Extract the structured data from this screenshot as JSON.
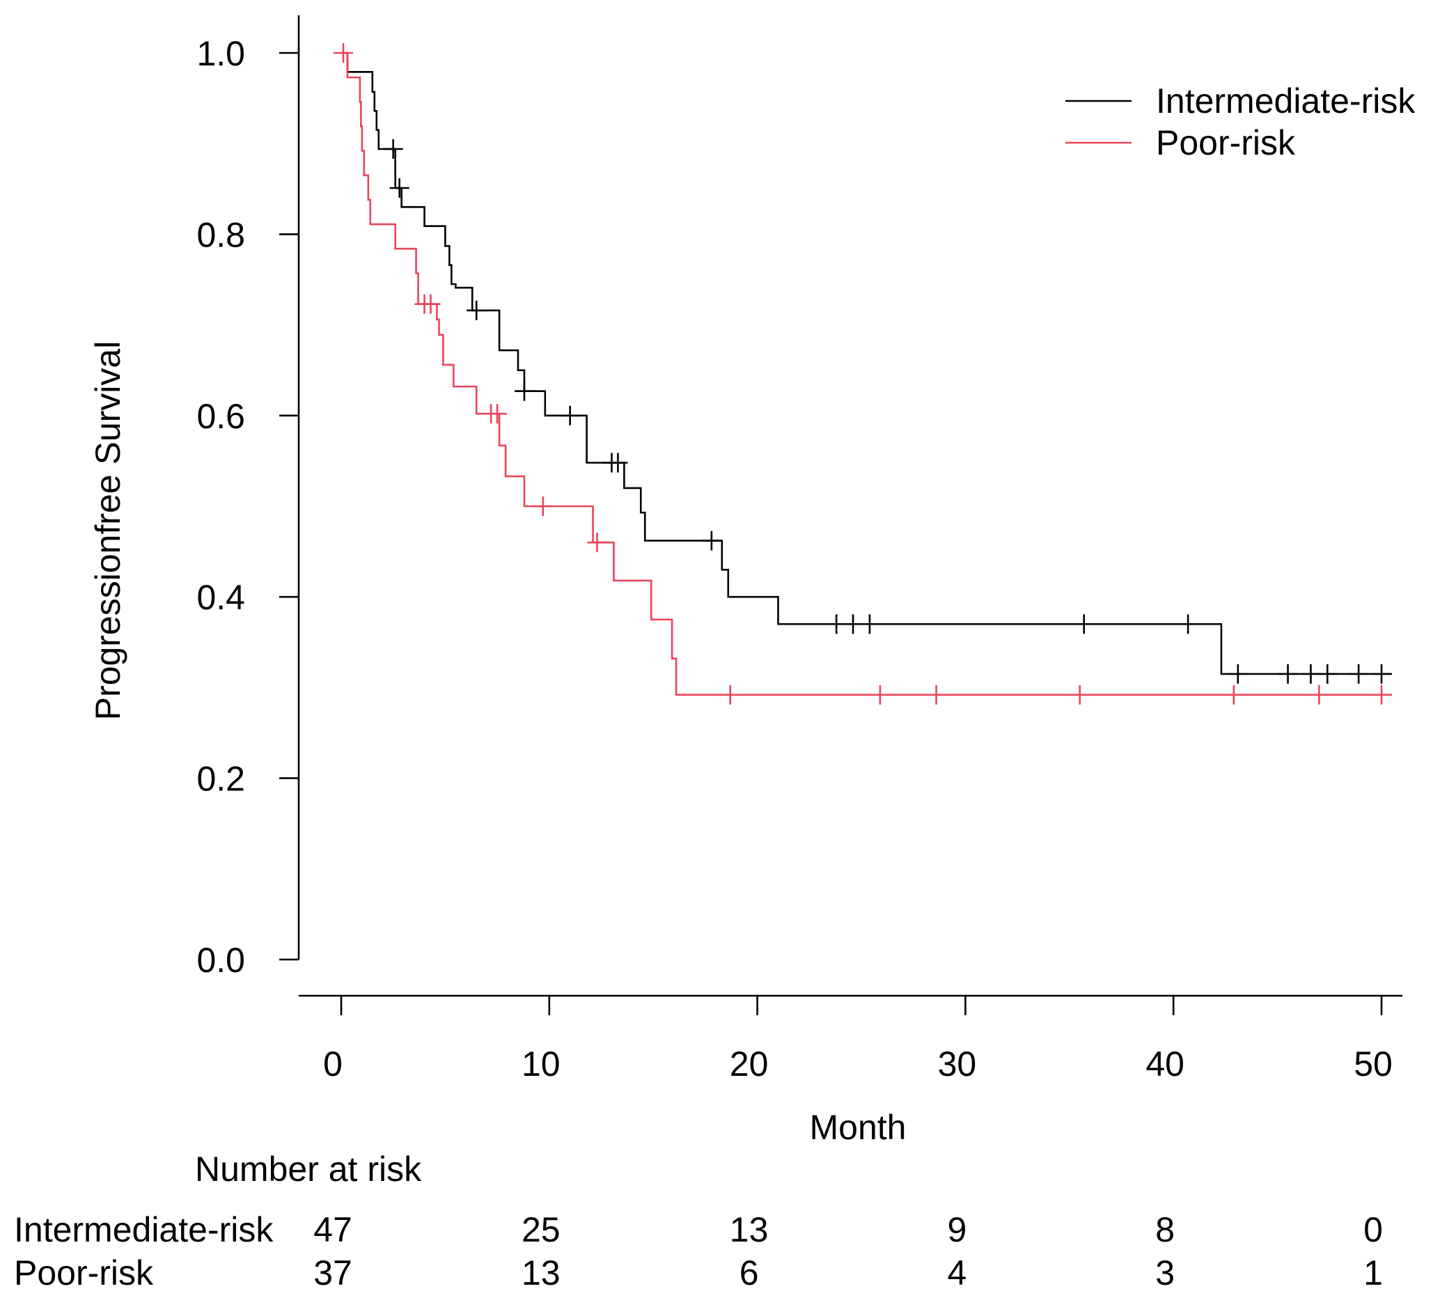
{
  "chart_data": {
    "type": "line",
    "subtype": "kaplan-meier step",
    "title": "",
    "xlabel": "Month",
    "ylabel": "Progressionfree Survival",
    "xlim": [
      0,
      50
    ],
    "ylim": [
      0,
      1
    ],
    "x_ticks": [
      "0",
      "10",
      "20",
      "30",
      "40",
      "50"
    ],
    "y_ticks": [
      "0.0",
      "0.2",
      "0.4",
      "0.6",
      "0.8",
      "1.0"
    ],
    "legend_position": "top-right",
    "series": [
      {
        "name": "Intermediate-risk",
        "color": "#000000",
        "steps": [
          [
            0,
            1.0
          ],
          [
            0.3,
            0.979
          ],
          [
            1.5,
            0.957
          ],
          [
            1.6,
            0.936
          ],
          [
            1.7,
            0.915
          ],
          [
            1.8,
            0.894
          ],
          [
            2.6,
            0.851
          ],
          [
            2.9,
            0.83
          ],
          [
            4.0,
            0.809
          ],
          [
            5.0,
            0.787
          ],
          [
            5.2,
            0.766
          ],
          [
            5.3,
            0.745
          ],
          [
            5.5,
            0.741
          ],
          [
            6.3,
            0.716
          ],
          [
            7.6,
            0.672
          ],
          [
            8.5,
            0.65
          ],
          [
            8.8,
            0.627
          ],
          [
            9.8,
            0.6
          ],
          [
            11.8,
            0.548
          ],
          [
            13.6,
            0.52
          ],
          [
            14.4,
            0.493
          ],
          [
            14.6,
            0.462
          ],
          [
            18.3,
            0.43
          ],
          [
            18.6,
            0.4
          ],
          [
            21.0,
            0.37
          ],
          [
            42.3,
            0.315
          ],
          [
            50.5,
            0.315
          ]
        ],
        "censor_times": [
          2.5,
          2.8,
          6.5,
          8.8,
          11.0,
          13.0,
          13.3,
          17.8,
          23.8,
          24.6,
          25.4,
          35.7,
          40.7,
          43.1,
          45.5,
          46.6,
          47.4,
          48.9,
          50.0
        ]
      },
      {
        "name": "Poor-risk",
        "color": "#e8455a",
        "steps": [
          [
            0,
            1.0
          ],
          [
            0.3,
            0.973
          ],
          [
            0.9,
            0.946
          ],
          [
            0.95,
            0.919
          ],
          [
            1.0,
            0.892
          ],
          [
            1.1,
            0.865
          ],
          [
            1.3,
            0.838
          ],
          [
            1.4,
            0.811
          ],
          [
            2.6,
            0.784
          ],
          [
            3.6,
            0.757
          ],
          [
            3.7,
            0.723
          ],
          [
            4.6,
            0.706
          ],
          [
            4.7,
            0.689
          ],
          [
            4.9,
            0.656
          ],
          [
            5.4,
            0.632
          ],
          [
            6.5,
            0.602
          ],
          [
            7.6,
            0.567
          ],
          [
            7.9,
            0.533
          ],
          [
            8.8,
            0.5
          ],
          [
            12.1,
            0.46
          ],
          [
            13.1,
            0.418
          ],
          [
            14.9,
            0.375
          ],
          [
            15.9,
            0.332
          ],
          [
            16.1,
            0.292
          ],
          [
            50.5,
            0.292
          ]
        ],
        "censor_times": [
          0.1,
          4.0,
          4.3,
          7.2,
          7.5,
          9.7,
          12.3,
          18.7,
          25.9,
          28.6,
          35.5,
          42.9,
          47.0,
          50.0
        ]
      }
    ],
    "risk_table": {
      "title": "Number at risk",
      "times": [
        "0",
        "10",
        "20",
        "30",
        "40",
        "50"
      ],
      "rows": [
        {
          "label": "Intermediate-risk",
          "values": [
            "47",
            "25",
            "13",
            "9",
            "8",
            "0"
          ]
        },
        {
          "label": "Poor-risk",
          "values": [
            "37",
            "13",
            "6",
            "4",
            "3",
            "1"
          ]
        }
      ]
    }
  }
}
